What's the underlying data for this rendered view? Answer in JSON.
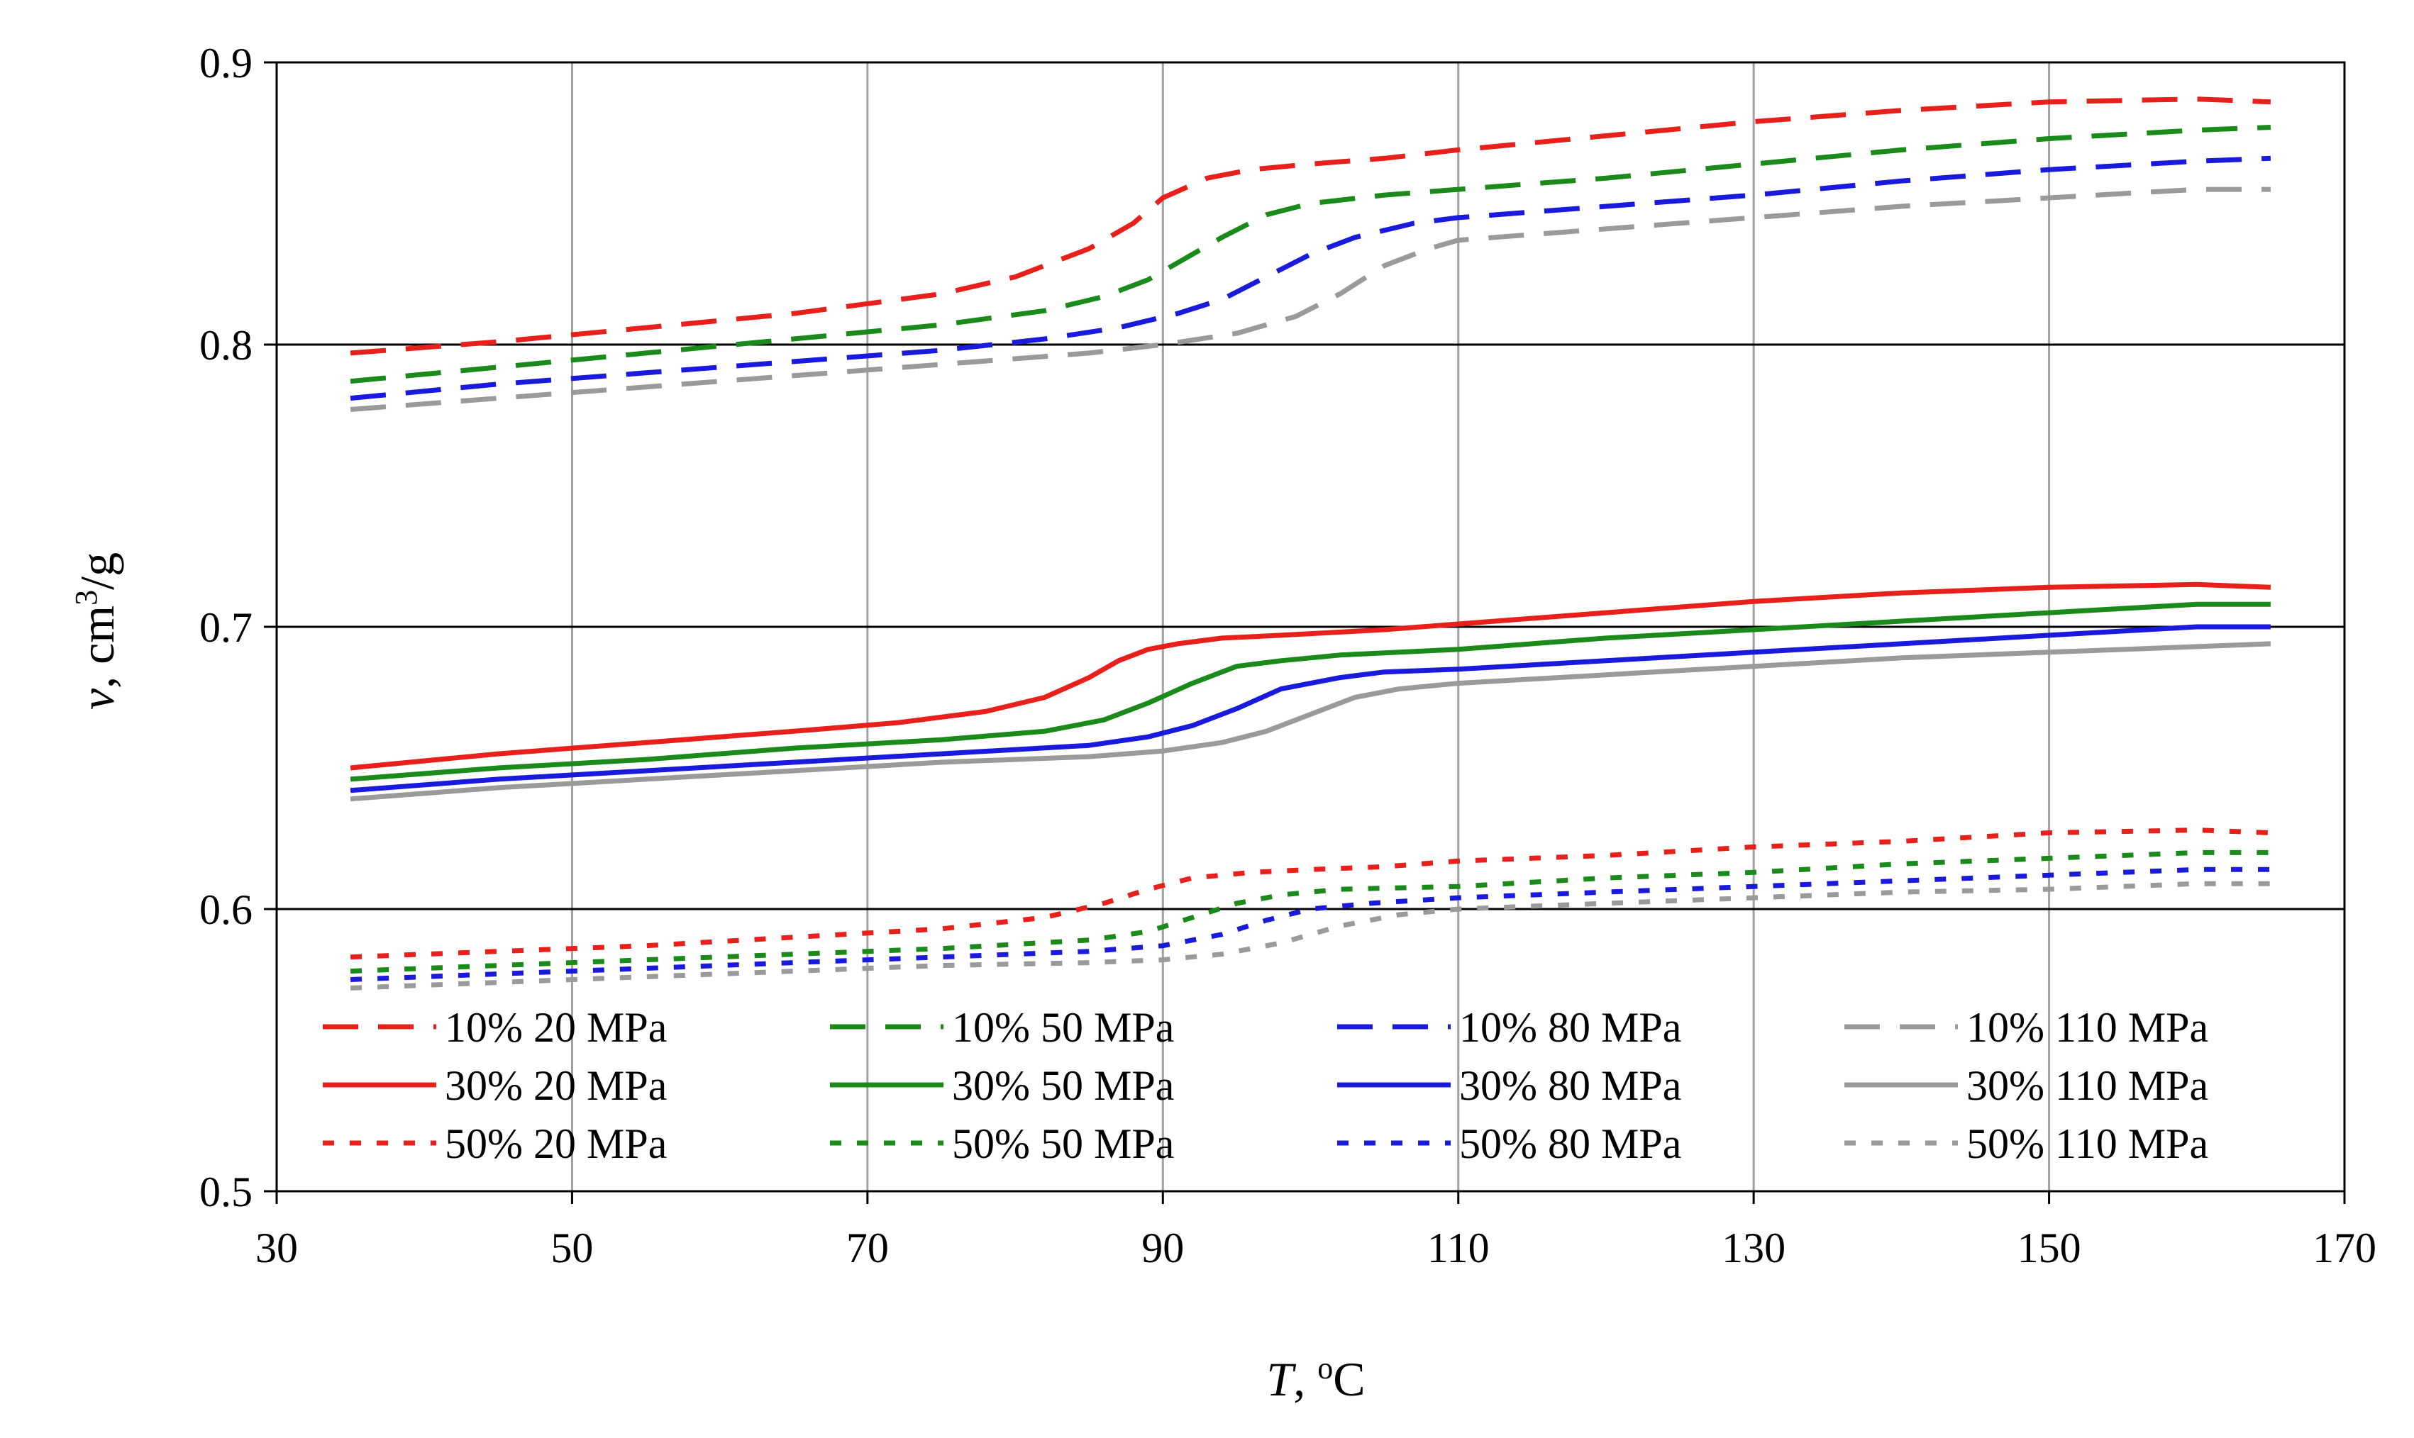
{
  "chart_data": {
    "type": "line",
    "xlabel_var": "T",
    "xlabel_sep": ", ",
    "xlabel_sup": "o",
    "xlabel_unit": "C",
    "ylabel_var": "v",
    "ylabel_sep": ", cm",
    "ylabel_sup": "3",
    "ylabel_unit": "/g",
    "xlim": [
      30,
      170
    ],
    "ylim": [
      0.5,
      0.9
    ],
    "xticks": [
      "30",
      "50",
      "70",
      "90",
      "110",
      "130",
      "150",
      "170"
    ],
    "yticks": [
      "0.5",
      "0.6",
      "0.7",
      "0.8",
      "0.9"
    ],
    "grid": {
      "vertical": true,
      "horizontal": true
    },
    "legend_position": "bottom",
    "series": [
      {
        "name": "10% 20 MPa",
        "color": "#e8201c",
        "style": "dashed",
        "x": [
          35,
          45,
          55,
          65,
          75,
          80,
          85,
          88,
          90,
          93,
          96,
          100,
          105,
          110,
          120,
          130,
          140,
          150,
          160,
          165
        ],
        "y": [
          0.797,
          0.801,
          0.806,
          0.811,
          0.818,
          0.824,
          0.834,
          0.843,
          0.852,
          0.859,
          0.862,
          0.864,
          0.866,
          0.869,
          0.874,
          0.879,
          0.883,
          0.886,
          0.887,
          0.886
        ]
      },
      {
        "name": "10% 50 MPa",
        "color": "#1a8a1a",
        "style": "dashed",
        "x": [
          35,
          45,
          55,
          65,
          75,
          82,
          86,
          89,
          91,
          94,
          97,
          100,
          105,
          110,
          120,
          130,
          140,
          150,
          160,
          165
        ],
        "y": [
          0.787,
          0.792,
          0.797,
          0.802,
          0.807,
          0.812,
          0.817,
          0.823,
          0.829,
          0.838,
          0.846,
          0.85,
          0.853,
          0.855,
          0.859,
          0.864,
          0.869,
          0.873,
          0.876,
          0.877
        ]
      },
      {
        "name": "10% 80 MPa",
        "color": "#1a1adc",
        "style": "dashed",
        "x": [
          35,
          45,
          55,
          65,
          75,
          82,
          87,
          91,
          94,
          97,
          100,
          103,
          107,
          110,
          120,
          130,
          140,
          150,
          160,
          165
        ],
        "y": [
          0.781,
          0.786,
          0.79,
          0.794,
          0.798,
          0.802,
          0.806,
          0.811,
          0.816,
          0.824,
          0.832,
          0.838,
          0.843,
          0.845,
          0.849,
          0.853,
          0.858,
          0.862,
          0.865,
          0.866
        ]
      },
      {
        "name": "10% 110 MPa",
        "color": "#9a9a9a",
        "style": "dashed",
        "x": [
          35,
          45,
          55,
          65,
          75,
          85,
          90,
          95,
          99,
          102,
          105,
          108,
          110,
          120,
          130,
          140,
          150,
          160,
          165
        ],
        "y": [
          0.777,
          0.781,
          0.785,
          0.789,
          0.793,
          0.797,
          0.8,
          0.804,
          0.81,
          0.818,
          0.828,
          0.834,
          0.837,
          0.841,
          0.845,
          0.849,
          0.852,
          0.855,
          0.855
        ]
      },
      {
        "name": "30% 20 MPa",
        "color": "#e8201c",
        "style": "solid",
        "x": [
          35,
          45,
          55,
          65,
          72,
          78,
          82,
          85,
          87,
          89,
          91,
          94,
          98,
          105,
          110,
          120,
          130,
          140,
          150,
          160,
          165
        ],
        "y": [
          0.65,
          0.655,
          0.659,
          0.663,
          0.666,
          0.67,
          0.675,
          0.682,
          0.688,
          0.692,
          0.694,
          0.696,
          0.697,
          0.699,
          0.701,
          0.705,
          0.709,
          0.712,
          0.714,
          0.715,
          0.714
        ]
      },
      {
        "name": "30% 50 MPa",
        "color": "#1a8a1a",
        "style": "solid",
        "x": [
          35,
          45,
          55,
          65,
          75,
          82,
          86,
          89,
          92,
          95,
          98,
          102,
          110,
          120,
          130,
          140,
          150,
          160,
          165
        ],
        "y": [
          0.646,
          0.65,
          0.653,
          0.657,
          0.66,
          0.663,
          0.667,
          0.673,
          0.68,
          0.686,
          0.688,
          0.69,
          0.692,
          0.696,
          0.699,
          0.702,
          0.705,
          0.708,
          0.708
        ]
      },
      {
        "name": "30% 80 MPa",
        "color": "#1a1adc",
        "style": "solid",
        "x": [
          35,
          45,
          55,
          65,
          75,
          85,
          89,
          92,
          95,
          98,
          102,
          105,
          110,
          120,
          130,
          140,
          150,
          160,
          165
        ],
        "y": [
          0.642,
          0.646,
          0.649,
          0.652,
          0.655,
          0.658,
          0.661,
          0.665,
          0.671,
          0.678,
          0.682,
          0.684,
          0.685,
          0.688,
          0.691,
          0.694,
          0.697,
          0.7,
          0.7
        ]
      },
      {
        "name": "30% 110 MPa",
        "color": "#9a9a9a",
        "style": "solid",
        "x": [
          35,
          45,
          55,
          65,
          75,
          85,
          90,
          94,
          97,
          100,
          103,
          106,
          110,
          120,
          130,
          140,
          150,
          160,
          165
        ],
        "y": [
          0.639,
          0.643,
          0.646,
          0.649,
          0.652,
          0.654,
          0.656,
          0.659,
          0.663,
          0.669,
          0.675,
          0.678,
          0.68,
          0.683,
          0.686,
          0.689,
          0.691,
          0.693,
          0.694
        ]
      },
      {
        "name": "50% 20 MPa",
        "color": "#e8201c",
        "style": "dotted",
        "x": [
          35,
          45,
          55,
          65,
          75,
          82,
          86,
          89,
          92,
          96,
          100,
          105,
          110,
          120,
          130,
          140,
          150,
          160,
          165
        ],
        "y": [
          0.583,
          0.585,
          0.587,
          0.59,
          0.593,
          0.597,
          0.602,
          0.607,
          0.611,
          0.613,
          0.614,
          0.615,
          0.617,
          0.619,
          0.622,
          0.624,
          0.627,
          0.628,
          0.627
        ]
      },
      {
        "name": "50% 50 MPa",
        "color": "#1a8a1a",
        "style": "dotted",
        "x": [
          35,
          45,
          55,
          65,
          75,
          85,
          89,
          92,
          95,
          98,
          102,
          110,
          120,
          130,
          140,
          150,
          160,
          165
        ],
        "y": [
          0.578,
          0.58,
          0.582,
          0.584,
          0.586,
          0.589,
          0.592,
          0.597,
          0.602,
          0.605,
          0.607,
          0.608,
          0.611,
          0.613,
          0.616,
          0.618,
          0.62,
          0.62
        ]
      },
      {
        "name": "50% 80 MPa",
        "color": "#1a1adc",
        "style": "dotted",
        "x": [
          35,
          45,
          55,
          65,
          75,
          85,
          90,
          94,
          97,
          100,
          104,
          110,
          120,
          130,
          140,
          150,
          160,
          165
        ],
        "y": [
          0.575,
          0.577,
          0.579,
          0.581,
          0.583,
          0.585,
          0.587,
          0.591,
          0.596,
          0.6,
          0.602,
          0.604,
          0.606,
          0.608,
          0.61,
          0.612,
          0.614,
          0.614
        ]
      },
      {
        "name": "50% 110 MPa",
        "color": "#9a9a9a",
        "style": "dotted",
        "x": [
          35,
          45,
          55,
          65,
          75,
          85,
          90,
          94,
          98,
          102,
          106,
          110,
          120,
          130,
          140,
          150,
          160,
          165
        ],
        "y": [
          0.572,
          0.574,
          0.576,
          0.578,
          0.58,
          0.581,
          0.582,
          0.584,
          0.588,
          0.594,
          0.598,
          0.6,
          0.602,
          0.604,
          0.606,
          0.607,
          0.609,
          0.609
        ]
      }
    ]
  }
}
